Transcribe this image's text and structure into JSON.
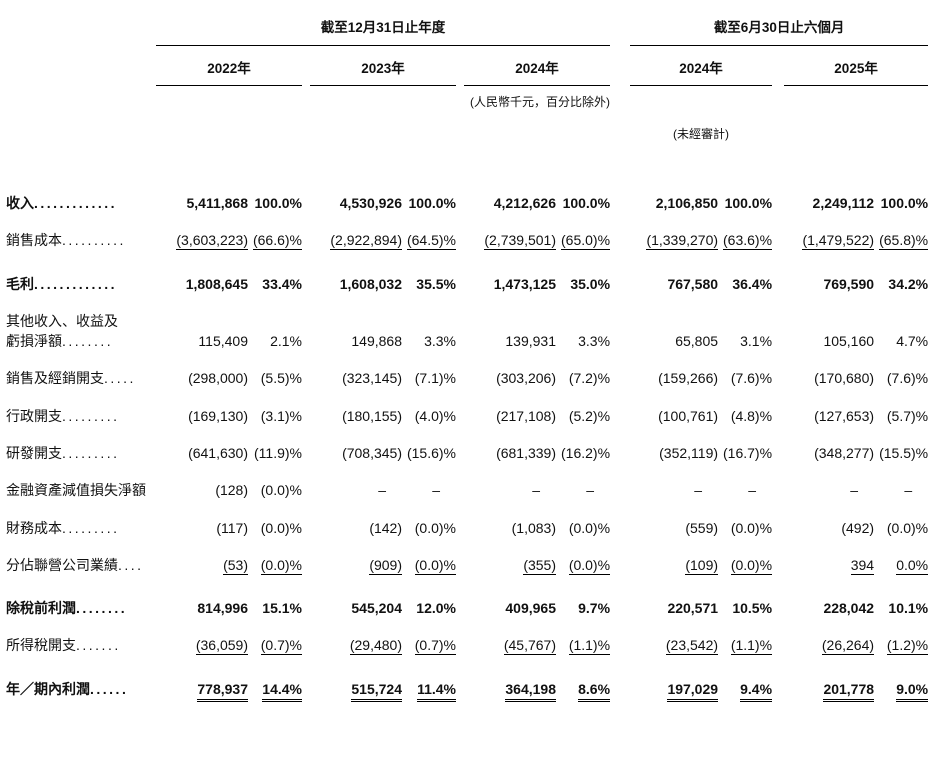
{
  "table": {
    "periods": [
      {
        "title": "截至12月31日止年度",
        "years": [
          "2022年",
          "2023年",
          "2024年"
        ]
      },
      {
        "title": "截至6月30日止六個月",
        "years": [
          "2024年",
          "2025年"
        ]
      }
    ],
    "notes": {
      "currency": "(人民幣千元，百分比除外)",
      "unaudited": "(未經審計)"
    },
    "rows": [
      {
        "label": "收入",
        "leader": ".............",
        "bold": true,
        "underline": "none",
        "gap": false,
        "values": [
          "5,411,868",
          "100.0%",
          "4,530,926",
          "100.0%",
          "4,212,626",
          "100.0%",
          "2,106,850",
          "100.0%",
          "2,249,112",
          "100.0%"
        ]
      },
      {
        "label": "銷售成本",
        "leader": "..........",
        "bold": false,
        "underline": "single",
        "gap": false,
        "values": [
          "(3,603,223)",
          "(66.6)%",
          "(2,922,894)",
          "(64.5)%",
          "(2,739,501)",
          "(65.0)%",
          "(1,339,270)",
          "(63.6)%",
          "(1,479,522)",
          "(65.8)%"
        ]
      },
      {
        "label": "毛利",
        "leader": ".............",
        "bold": true,
        "underline": "none",
        "gap": true,
        "values": [
          "1,808,645",
          "33.4%",
          "1,608,032",
          "35.5%",
          "1,473,125",
          "35.0%",
          "767,580",
          "36.4%",
          "769,590",
          "34.2%"
        ]
      },
      {
        "label": "其他收入、收益及\n虧損淨額",
        "leader": "........",
        "bold": false,
        "underline": "none",
        "gap": false,
        "values": [
          "115,409",
          "2.1%",
          "149,868",
          "3.3%",
          "139,931",
          "3.3%",
          "65,805",
          "3.1%",
          "105,160",
          "4.7%"
        ]
      },
      {
        "label": "銷售及經銷開支",
        "leader": ".....",
        "bold": false,
        "underline": "none",
        "gap": false,
        "values": [
          "(298,000)",
          "(5.5)%",
          "(323,145)",
          "(7.1)%",
          "(303,206)",
          "(7.2)%",
          "(159,266)",
          "(7.6)%",
          "(170,680)",
          "(7.6)%"
        ]
      },
      {
        "label": "行政開支",
        "leader": ".........",
        "bold": false,
        "underline": "none",
        "gap": false,
        "values": [
          "(169,130)",
          "(3.1)%",
          "(180,155)",
          "(4.0)%",
          "(217,108)",
          "(5.2)%",
          "(100,761)",
          "(4.8)%",
          "(127,653)",
          "(5.7)%"
        ]
      },
      {
        "label": "研發開支",
        "leader": ".........",
        "bold": false,
        "underline": "none",
        "gap": false,
        "values": [
          "(641,630)",
          "(11.9)%",
          "(708,345)",
          "(15.6)%",
          "(681,339)",
          "(16.2)%",
          "(352,119)",
          "(16.7)%",
          "(348,277)",
          "(15.5)%"
        ]
      },
      {
        "label": "金融資產減值損失淨額",
        "leader": "",
        "bold": false,
        "underline": "none",
        "gap": false,
        "values": [
          "(128)",
          "(0.0)%",
          "–",
          "–",
          "–",
          "–",
          "–",
          "–",
          "–",
          "–"
        ]
      },
      {
        "label": "財務成本",
        "leader": ".........",
        "bold": false,
        "underline": "none",
        "gap": false,
        "values": [
          "(117)",
          "(0.0)%",
          "(142)",
          "(0.0)%",
          "(1,083)",
          "(0.0)%",
          "(559)",
          "(0.0)%",
          "(492)",
          "(0.0)%"
        ]
      },
      {
        "label": "分佔聯營公司業績",
        "leader": "....",
        "bold": false,
        "underline": "single",
        "gap": false,
        "values": [
          "(53)",
          "(0.0)%",
          "(909)",
          "(0.0)%",
          "(355)",
          "(0.0)%",
          "(109)",
          "(0.0)%",
          "394",
          "0.0%"
        ]
      },
      {
        "label": "除稅前利潤",
        "leader": "........",
        "bold": true,
        "underline": "none",
        "gap": true,
        "values": [
          "814,996",
          "15.1%",
          "545,204",
          "12.0%",
          "409,965",
          "9.7%",
          "220,571",
          "10.5%",
          "228,042",
          "10.1%"
        ]
      },
      {
        "label": "所得稅開支",
        "leader": ".......",
        "bold": false,
        "underline": "single",
        "gap": false,
        "values": [
          "(36,059)",
          "(0.7)%",
          "(29,480)",
          "(0.7)%",
          "(45,767)",
          "(1.1)%",
          "(23,542)",
          "(1.1)%",
          "(26,264)",
          "(1.2)%"
        ]
      },
      {
        "label": "年／期內利潤",
        "leader": "......",
        "bold": true,
        "underline": "double",
        "gap": true,
        "values": [
          "778,937",
          "14.4%",
          "515,724",
          "11.4%",
          "364,198",
          "8.6%",
          "197,029",
          "9.4%",
          "201,778",
          "9.0%"
        ]
      }
    ]
  }
}
